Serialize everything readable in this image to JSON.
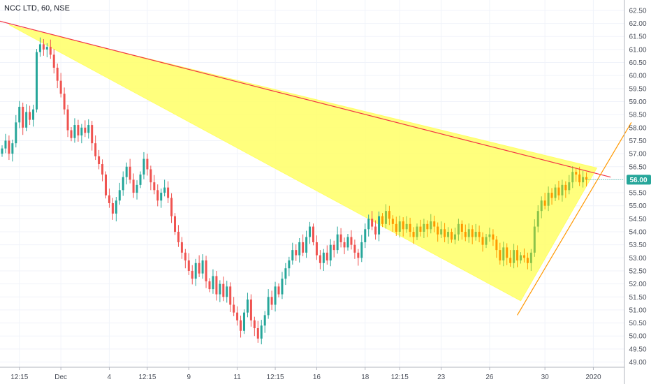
{
  "header": {
    "symbol_title": "NCC LTD, 60, NSE"
  },
  "colors": {
    "up": "#26a69a",
    "down": "#ef5350",
    "wedge_fill": "#ffff66",
    "trendline_upper": "#f23645",
    "trendline_lower": "#ff9800",
    "highlight_up": "#8bc34a",
    "highlight_down": "#ff9800",
    "price_tag_bg": "#26a69a",
    "grid": "#f0f3fa",
    "axis_line": "#b2b5be"
  },
  "chart_data": {
    "type": "candlestick",
    "symbol": "NCC LTD",
    "interval": "60",
    "exchange": "NSE",
    "ylim": [
      48.8,
      62.9
    ],
    "y_axis_position": "right",
    "grid": true,
    "y_ticks": [
      "49.00",
      "49.50",
      "50.00",
      "50.50",
      "51.00",
      "51.50",
      "52.00",
      "52.50",
      "53.00",
      "53.50",
      "54.00",
      "54.50",
      "55.00",
      "55.50",
      "56.00",
      "56.50",
      "57.00",
      "57.50",
      "58.00",
      "58.50",
      "59.00",
      "59.50",
      "60.00",
      "60.50",
      "61.00",
      "61.50",
      "62.00",
      "62.50"
    ],
    "x_ticks": [
      {
        "label": "12:15",
        "bar": 5
      },
      {
        "label": "Dec",
        "bar": 17
      },
      {
        "label": "4",
        "bar": 31
      },
      {
        "label": "12:15",
        "bar": 42
      },
      {
        "label": "9",
        "bar": 54
      },
      {
        "label": "11",
        "bar": 68
      },
      {
        "label": "12:15",
        "bar": 79
      },
      {
        "label": "16",
        "bar": 91
      },
      {
        "label": "18",
        "bar": 105
      },
      {
        "label": "12:15",
        "bar": 115
      },
      {
        "label": "23",
        "bar": 127
      },
      {
        "label": "26",
        "bar": 141
      },
      {
        "label": "30",
        "bar": 157
      },
      {
        "label": "2020",
        "bar": 171
      }
    ],
    "last_price": "56.00",
    "last_price_value": 56.0,
    "closes": [
      57.2,
      57.5,
      57.0,
      57.4,
      58.2,
      58.8,
      58.0,
      58.6,
      58.3,
      58.7,
      60.9,
      61.2,
      61.0,
      61.1,
      60.8,
      60.3,
      59.8,
      59.3,
      58.7,
      57.9,
      57.6,
      58.1,
      57.7,
      58.0,
      57.8,
      58.1,
      57.4,
      56.9,
      56.6,
      56.2,
      55.4,
      55.1,
      54.7,
      55.2,
      55.6,
      56.1,
      56.5,
      56.0,
      55.5,
      55.8,
      56.2,
      56.8,
      56.4,
      55.9,
      55.6,
      55.2,
      55.5,
      55.7,
      55.3,
      54.6,
      54.0,
      53.6,
      53.2,
      52.9,
      52.5,
      52.2,
      52.8,
      52.4,
      52.9,
      52.1,
      51.8,
      52.3,
      51.6,
      52.0,
      51.5,
      51.9,
      51.2,
      50.9,
      50.6,
      50.2,
      50.9,
      51.4,
      50.6,
      50.3,
      49.9,
      50.4,
      50.8,
      51.5,
      51.2,
      51.9,
      51.6,
      52.2,
      52.6,
      52.9,
      53.3,
      53.1,
      53.6,
      53.2,
      53.8,
      54.2,
      53.6,
      53.1,
      52.8,
      53.2,
      52.9,
      53.5,
      53.3,
      53.9,
      53.6,
      53.4,
      53.8,
      53.5,
      53.2,
      53.0,
      53.6,
      54.1,
      54.5,
      54.2,
      53.9,
      54.6,
      54.3,
      54.8,
      54.5,
      54.3,
      54.0,
      54.4,
      54.1,
      54.3,
      54.0,
      53.8,
      54.2,
      54.0,
      54.3,
      54.1,
      54.4,
      54.2,
      53.9,
      54.1,
      53.8,
      54.0,
      53.7,
      53.9,
      54.3,
      54.0,
      53.8,
      54.1,
      53.8,
      54.0,
      53.8,
      53.5,
      53.8,
      53.9,
      53.7,
      53.3,
      52.9,
      53.4,
      53.0,
      52.8,
      53.3,
      52.9,
      53.1,
      53.0,
      52.8,
      53.2,
      54.2,
      54.8,
      55.2,
      55.0,
      55.5,
      55.3,
      55.7,
      55.4,
      55.8,
      55.6,
      55.9,
      56.3,
      56.2,
      55.9,
      56.1,
      56.0
    ],
    "trendlines": [
      {
        "name": "upper",
        "from": {
          "bar": -4,
          "value": 62.2
        },
        "to": {
          "bar": 176,
          "value": 56.1
        }
      },
      {
        "name": "lower",
        "from": {
          "bar": 149,
          "value": 50.8
        },
        "to": {
          "bar": 182,
          "value": 58.2
        }
      }
    ],
    "wedge": [
      {
        "bar": 2,
        "value": 61.95
      },
      {
        "bar": 172,
        "value": 56.45
      },
      {
        "bar": 150,
        "value": 51.35
      }
    ],
    "highlight_range": {
      "from_bar": 110,
      "to_bar": 172
    }
  }
}
